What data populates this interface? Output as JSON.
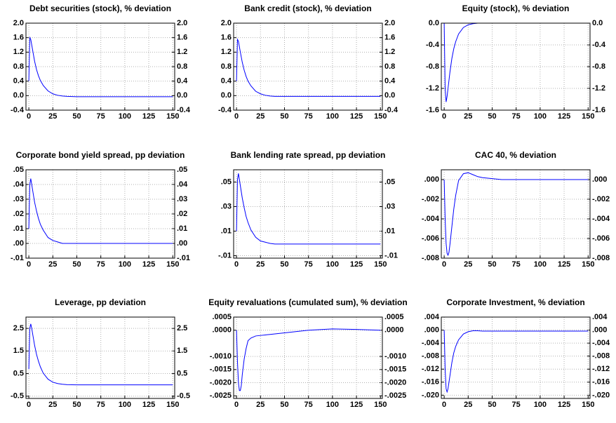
{
  "chart_data": [
    {
      "type": "line",
      "title": "Debt securities (stock), % deviation",
      "color": "#0000ff",
      "grid": true,
      "x": [
        0,
        1,
        2,
        3,
        4,
        5,
        6,
        8,
        10,
        12,
        15,
        20,
        25,
        30,
        35,
        40,
        50,
        60,
        75,
        100,
        125,
        150
      ],
      "values": [
        0.4,
        1.6,
        1.55,
        1.4,
        1.25,
        1.1,
        0.95,
        0.72,
        0.55,
        0.42,
        0.28,
        0.13,
        0.05,
        0.01,
        -0.01,
        -0.02,
        -0.03,
        -0.03,
        -0.03,
        -0.03,
        -0.03,
        -0.03
      ],
      "xlim": [
        -3,
        152
      ],
      "xticks": [
        0,
        25,
        50,
        75,
        100,
        125,
        150
      ],
      "ylim": [
        -0.4,
        2.0
      ],
      "yticks": [
        -0.4,
        {
          "value": 0,
          "label": "0.0"
        },
        0.4,
        0.8,
        1.2,
        1.6,
        {
          "value": 2,
          "label": "2.0"
        }
      ]
    },
    {
      "type": "line",
      "title": "Bank credit (stock), % deviation",
      "color": "#0000ff",
      "grid": true,
      "x": [
        0,
        1,
        2,
        3,
        4,
        5,
        6,
        8,
        10,
        12,
        15,
        20,
        25,
        30,
        35,
        40,
        50,
        60,
        75,
        100,
        125,
        150
      ],
      "values": [
        0.4,
        1.55,
        1.5,
        1.35,
        1.2,
        1.06,
        0.92,
        0.7,
        0.53,
        0.4,
        0.27,
        0.12,
        0.05,
        0.01,
        -0.01,
        -0.02,
        -0.02,
        -0.02,
        -0.02,
        -0.02,
        -0.02,
        -0.02
      ],
      "xlim": [
        -3,
        152
      ],
      "xticks": [
        0,
        25,
        50,
        75,
        100,
        125,
        150
      ],
      "ylim": [
        -0.4,
        2.0
      ],
      "yticks": [
        -0.4,
        {
          "value": 0,
          "label": "0.0"
        },
        0.4,
        0.8,
        1.2,
        1.6,
        {
          "value": 2,
          "label": "2.0"
        }
      ]
    },
    {
      "type": "line",
      "title": "Equity (stock), % deviation",
      "color": "#0000ff",
      "grid": true,
      "x": [
        0,
        1,
        2,
        3,
        4,
        5,
        6,
        8,
        10,
        12,
        15,
        20,
        25,
        30,
        35,
        40,
        50,
        60,
        75,
        100,
        125,
        150
      ],
      "values": [
        0,
        -1.2,
        -1.45,
        -1.35,
        -1.2,
        -1.05,
        -0.9,
        -0.65,
        -0.47,
        -0.34,
        -0.2,
        -0.08,
        -0.03,
        -0.01,
        0,
        0,
        0,
        0,
        0,
        0,
        0,
        0
      ],
      "xlim": [
        -3,
        152
      ],
      "xticks": [
        0,
        25,
        50,
        75,
        100,
        125,
        150
      ],
      "ylim": [
        -1.6,
        0
      ],
      "yticks": [
        -1.6,
        -1.2,
        -0.8,
        -0.4,
        {
          "value": 0,
          "label": "0.0"
        }
      ]
    },
    {
      "type": "line",
      "title": "Corporate bond yield spread, pp deviation",
      "color": "#0000ff",
      "grid": true,
      "x": [
        0,
        1,
        2,
        3,
        4,
        5,
        6,
        8,
        10,
        12,
        15,
        20,
        25,
        30,
        35,
        40,
        50,
        60,
        75,
        100,
        125,
        150
      ],
      "values": [
        0.01,
        0.04,
        0.044,
        0.04,
        0.036,
        0.032,
        0.028,
        0.022,
        0.017,
        0.013,
        0.009,
        0.004,
        0.002,
        0.001,
        0,
        0,
        0,
        0,
        0,
        0,
        0,
        0
      ],
      "xlim": [
        -3,
        152
      ],
      "xticks": [
        0,
        25,
        50,
        75,
        100,
        125,
        150
      ],
      "ylim": [
        -0.01,
        0.05
      ],
      "yticks": [
        {
          "value": -0.01,
          "label": "-.01"
        },
        {
          "value": 0,
          "label": ".00"
        },
        {
          "value": 0.01,
          "label": ".01"
        },
        {
          "value": 0.02,
          "label": ".02"
        },
        {
          "value": 0.03,
          "label": ".03"
        },
        {
          "value": 0.04,
          "label": ".04"
        },
        {
          "value": 0.05,
          "label": ".05"
        }
      ]
    },
    {
      "type": "line",
      "title": "Bank lending rate spread, pp deviation",
      "color": "#0000ff",
      "grid": true,
      "x": [
        0,
        1,
        2,
        3,
        4,
        5,
        6,
        8,
        10,
        12,
        15,
        20,
        25,
        30,
        35,
        40,
        50,
        60,
        75,
        100,
        125,
        150
      ],
      "values": [
        0.01,
        0.052,
        0.057,
        0.052,
        0.047,
        0.042,
        0.037,
        0.029,
        0.022,
        0.017,
        0.011,
        0.005,
        0.002,
        0.001,
        0,
        -0.0005,
        -0.0005,
        -0.0005,
        -0.0005,
        -0.0005,
        -0.0005,
        -0.0005
      ],
      "xlim": [
        -3,
        152
      ],
      "xticks": [
        0,
        25,
        50,
        75,
        100,
        125,
        150
      ],
      "ylim": [
        -0.012,
        0.06
      ],
      "yticks": [
        {
          "value": -0.01,
          "label": "-.01"
        },
        {
          "value": 0.01,
          "label": ".01"
        },
        {
          "value": 0.03,
          "label": ".03"
        },
        {
          "value": 0.05,
          "label": ".05"
        }
      ]
    },
    {
      "type": "line",
      "title": "CAC 40, % deviation",
      "color": "#0000ff",
      "grid": true,
      "x": [
        0,
        1,
        2,
        3,
        4,
        5,
        6,
        8,
        10,
        12,
        15,
        20,
        25,
        30,
        35,
        40,
        50,
        60,
        75,
        100,
        125,
        150
      ],
      "values": [
        0,
        -0.004,
        -0.0065,
        -0.0075,
        -0.0077,
        -0.0074,
        -0.0066,
        -0.0048,
        -0.003,
        -0.0016,
        -0.0001,
        0.0006,
        0.0007,
        0.0005,
        0.0003,
        0.0002,
        0.0001,
        0,
        0,
        0,
        0,
        0
      ],
      "xlim": [
        -3,
        152
      ],
      "xticks": [
        0,
        25,
        50,
        75,
        100,
        125,
        150
      ],
      "ylim": [
        -0.008,
        0.001
      ],
      "yticks": [
        {
          "value": -0.008,
          "label": "-.008"
        },
        {
          "value": -0.006,
          "label": "-.006"
        },
        {
          "value": -0.004,
          "label": "-.004"
        },
        {
          "value": -0.002,
          "label": "-.002"
        },
        {
          "value": 0,
          "label": ".000"
        }
      ]
    },
    {
      "type": "line",
      "title": "Leverage, pp deviation",
      "color": "#0000ff",
      "grid": true,
      "x": [
        0,
        1,
        2,
        3,
        4,
        5,
        6,
        8,
        10,
        12,
        15,
        20,
        25,
        30,
        35,
        40,
        50,
        60,
        75,
        100,
        125,
        150
      ],
      "values": [
        0.7,
        2.5,
        2.7,
        2.5,
        2.25,
        2.0,
        1.75,
        1.35,
        1.05,
        0.8,
        0.52,
        0.25,
        0.12,
        0.06,
        0.03,
        0.01,
        0,
        0,
        0,
        0,
        0,
        0
      ],
      "xlim": [
        -3,
        152
      ],
      "xticks": [
        0,
        25,
        50,
        75,
        100,
        125,
        150
      ],
      "ylim": [
        -0.6,
        3.0
      ],
      "yticks": [
        -0.5,
        0.5,
        1.5,
        2.5
      ]
    },
    {
      "type": "line",
      "title": "Equity revaluations (cumulated sum), % deviation",
      "color": "#0000ff",
      "grid": true,
      "x": [
        0,
        1,
        2,
        3,
        4,
        5,
        6,
        8,
        10,
        12,
        15,
        20,
        25,
        30,
        35,
        40,
        50,
        60,
        75,
        100,
        125,
        150
      ],
      "values": [
        0,
        -0.0012,
        -0.002,
        -0.0023,
        -0.0023,
        -0.0021,
        -0.0017,
        -0.0011,
        -0.0007,
        -0.0004,
        -0.0003,
        -0.00022,
        -0.0002,
        -0.00018,
        -0.00016,
        -0.00014,
        -0.0001,
        -6e-05,
        0,
        5e-05,
        3e-05,
        0
      ],
      "xlim": [
        -3,
        152
      ],
      "xticks": [
        0,
        25,
        50,
        75,
        100,
        125,
        150
      ],
      "ylim": [
        -0.0026,
        0.0005
      ],
      "yticks": [
        {
          "value": -0.0025,
          "label": "-.0025"
        },
        {
          "value": -0.002,
          "label": "-.0020"
        },
        {
          "value": -0.0015,
          "label": "-.0015"
        },
        {
          "value": -0.001,
          "label": "-.0010"
        },
        {
          "value": 0,
          "label": ".0000"
        },
        {
          "value": 0.0005,
          "label": ".0005"
        }
      ]
    },
    {
      "type": "line",
      "title": "Corporate Investment, % deviation",
      "color": "#0000ff",
      "grid": true,
      "x": [
        0,
        1,
        2,
        3,
        4,
        5,
        6,
        8,
        10,
        12,
        15,
        20,
        25,
        30,
        35,
        40,
        50,
        60,
        75,
        100,
        125,
        150
      ],
      "values": [
        0,
        -0.012,
        -0.018,
        -0.019,
        -0.018,
        -0.016,
        -0.014,
        -0.01,
        -0.007,
        -0.005,
        -0.003,
        -0.0012,
        -0.0005,
        -0.0002,
        -0.0002,
        -0.0003,
        -0.0003,
        -0.0003,
        -0.0003,
        -0.0003,
        -0.0003,
        -0.0003
      ],
      "xlim": [
        -3,
        152
      ],
      "xticks": [
        0,
        25,
        50,
        75,
        100,
        125,
        150
      ],
      "ylim": [
        -0.021,
        0.004
      ],
      "yticks": [
        {
          "value": -0.02,
          "label": "-.020"
        },
        {
          "value": -0.016,
          "label": "-.016"
        },
        {
          "value": -0.012,
          "label": "-.012"
        },
        {
          "value": -0.008,
          "label": "-.008"
        },
        {
          "value": -0.004,
          "label": "-.004"
        },
        {
          "value": 0,
          "label": ".000"
        },
        {
          "value": 0.004,
          "label": ".004"
        }
      ]
    }
  ]
}
